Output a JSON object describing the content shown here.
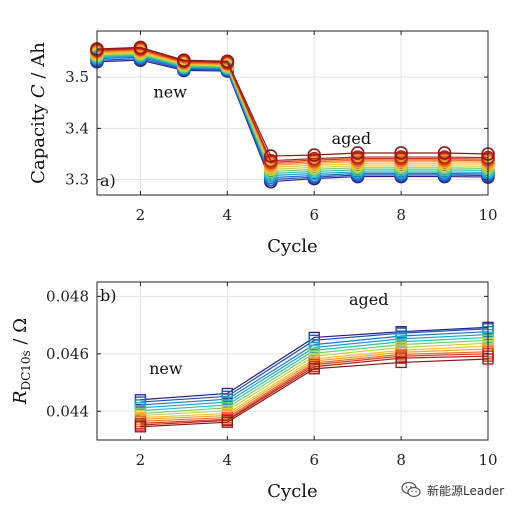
{
  "watermark": {
    "text": "新能源Leader",
    "icon": "wechat-icon"
  },
  "chart_data": [
    {
      "type": "line",
      "panel_label": "a)",
      "ylabel_main": "Capacity ",
      "ylabel_var": "C",
      "ylabel_unit": " / Ah",
      "xlabel": "Cycle",
      "xlim": [
        1,
        10
      ],
      "ylim": [
        3.27,
        3.59
      ],
      "xticks": [
        2,
        4,
        6,
        8,
        10
      ],
      "yticks": [
        3.3,
        3.4,
        3.5
      ],
      "ytick_labels": [
        "3.3",
        "3.4",
        "3.5"
      ],
      "grid": true,
      "marker": "circle",
      "annotations": [
        {
          "text": "new",
          "x": 2.3,
          "y": 3.46
        },
        {
          "text": "aged",
          "x": 6.4,
          "y": 3.37
        }
      ],
      "x": [
        1,
        2,
        3,
        4,
        5,
        6,
        7,
        8,
        9,
        10
      ],
      "series": [
        {
          "color": "#2b1d8a",
          "values": [
            3.53,
            3.533,
            3.513,
            3.512,
            3.296,
            3.302,
            3.306,
            3.306,
            3.306,
            3.305
          ]
        },
        {
          "color": "#1f4fb8",
          "values": [
            3.533,
            3.536,
            3.515,
            3.514,
            3.3,
            3.305,
            3.309,
            3.309,
            3.309,
            3.308
          ]
        },
        {
          "color": "#1b77c9",
          "values": [
            3.536,
            3.539,
            3.517,
            3.516,
            3.304,
            3.308,
            3.312,
            3.312,
            3.312,
            3.311
          ]
        },
        {
          "color": "#1aa0d0",
          "values": [
            3.538,
            3.541,
            3.519,
            3.517,
            3.308,
            3.312,
            3.315,
            3.315,
            3.315,
            3.314
          ]
        },
        {
          "color": "#24c2b2",
          "values": [
            3.54,
            3.543,
            3.52,
            3.519,
            3.312,
            3.316,
            3.319,
            3.319,
            3.319,
            3.318
          ]
        },
        {
          "color": "#6fd06a",
          "values": [
            3.542,
            3.545,
            3.522,
            3.52,
            3.316,
            3.32,
            3.323,
            3.323,
            3.323,
            3.322
          ]
        },
        {
          "color": "#c9d23a",
          "values": [
            3.544,
            3.547,
            3.524,
            3.522,
            3.32,
            3.324,
            3.327,
            3.327,
            3.327,
            3.326
          ]
        },
        {
          "color": "#f7c12c",
          "values": [
            3.546,
            3.549,
            3.525,
            3.523,
            3.324,
            3.328,
            3.331,
            3.331,
            3.331,
            3.33
          ]
        },
        {
          "color": "#f4a02a",
          "values": [
            3.548,
            3.551,
            3.527,
            3.525,
            3.328,
            3.332,
            3.335,
            3.335,
            3.335,
            3.334
          ]
        },
        {
          "color": "#ee6b24",
          "values": [
            3.55,
            3.553,
            3.528,
            3.526,
            3.331,
            3.335,
            3.338,
            3.338,
            3.338,
            3.337
          ]
        },
        {
          "color": "#d9381e",
          "values": [
            3.552,
            3.555,
            3.53,
            3.528,
            3.334,
            3.338,
            3.341,
            3.341,
            3.341,
            3.34
          ]
        },
        {
          "color": "#b7221a",
          "values": [
            3.553,
            3.556,
            3.531,
            3.529,
            3.337,
            3.341,
            3.344,
            3.344,
            3.344,
            3.343
          ]
        },
        {
          "color": "#8c1a12",
          "values": [
            3.555,
            3.558,
            3.533,
            3.531,
            3.346,
            3.348,
            3.352,
            3.352,
            3.352,
            3.35
          ]
        }
      ]
    },
    {
      "type": "line",
      "panel_label": "b)",
      "ylabel_main": "R",
      "ylabel_sub": "DC10s",
      "ylabel_unit": " / Ω",
      "xlabel": "Cycle",
      "xlim": [
        1,
        10
      ],
      "ylim": [
        0.043,
        0.0485
      ],
      "xticks": [
        2,
        4,
        6,
        8,
        10
      ],
      "yticks": [
        0.044,
        0.046,
        0.048
      ],
      "ytick_labels": [
        "0.044",
        "0.046",
        "0.048"
      ],
      "grid": true,
      "marker": "square",
      "annotations": [
        {
          "text": "new",
          "x": 2.2,
          "y": 0.0453
        },
        {
          "text": "aged",
          "x": 6.8,
          "y": 0.0477
        }
      ],
      "x": [
        2,
        4,
        6,
        8,
        10
      ],
      "series": [
        {
          "color": "#2b1d8a",
          "values": [
            0.0444,
            0.04462,
            0.04657,
            0.04677,
            0.04692
          ]
        },
        {
          "color": "#1f4fb8",
          "values": [
            0.04432,
            0.04452,
            0.04647,
            0.04672,
            0.04687
          ]
        },
        {
          "color": "#1b77c9",
          "values": [
            0.04422,
            0.04442,
            0.04632,
            0.04662,
            0.04677
          ]
        },
        {
          "color": "#1aa0d0",
          "values": [
            0.04412,
            0.04432,
            0.04622,
            0.04652,
            0.04667
          ]
        },
        {
          "color": "#24c2b2",
          "values": [
            0.04402,
            0.04422,
            0.04612,
            0.04642,
            0.04657
          ]
        },
        {
          "color": "#6fd06a",
          "values": [
            0.04392,
            0.04412,
            0.04602,
            0.04632,
            0.04647
          ]
        },
        {
          "color": "#c9d23a",
          "values": [
            0.04385,
            0.04402,
            0.04592,
            0.04622,
            0.04637
          ]
        },
        {
          "color": "#f7c12c",
          "values": [
            0.04378,
            0.04392,
            0.04582,
            0.04612,
            0.04627
          ]
        },
        {
          "color": "#f4a02a",
          "values": [
            0.04372,
            0.04385,
            0.04575,
            0.04605,
            0.04617
          ]
        },
        {
          "color": "#ee6b24",
          "values": [
            0.04365,
            0.04378,
            0.04568,
            0.04598,
            0.04607
          ]
        },
        {
          "color": "#d9381e",
          "values": [
            0.04358,
            0.04372,
            0.04562,
            0.04592,
            0.046
          ]
        },
        {
          "color": "#b7221a",
          "values": [
            0.04352,
            0.04368,
            0.04555,
            0.04585,
            0.04592
          ]
        },
        {
          "color": "#8c1a12",
          "values": [
            0.04346,
            0.04362,
            0.04548,
            0.0457,
            0.04582
          ]
        }
      ]
    }
  ]
}
